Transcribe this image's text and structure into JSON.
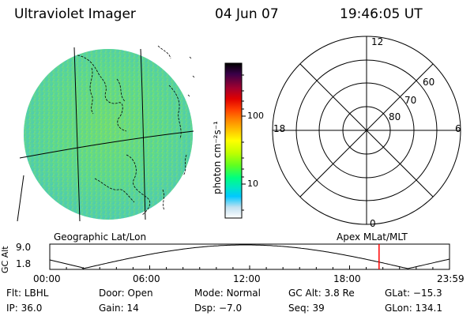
{
  "header": {
    "title": "Ultraviolet Imager",
    "date": "04 Jun 07",
    "time": "19:46:05 UT"
  },
  "colorbar": {
    "unit_label": "photon cm⁻²s⁻¹",
    "ticks": [
      "100",
      "10"
    ],
    "ticks_values": [
      100,
      10
    ],
    "colors": [
      "#000000",
      "#3a0048",
      "#a00030",
      "#e00000",
      "#ff4000",
      "#ff8000",
      "#ffc000",
      "#ffff00",
      "#c0ff00",
      "#60ff20",
      "#00ff80",
      "#00e8c0",
      "#00c8ff",
      "#c0e0f0",
      "#ffffff"
    ]
  },
  "polar": {
    "mlt_labels": {
      "top": "12",
      "left": "18",
      "right": "6",
      "bottom": "0"
    },
    "lat_labels": [
      "60",
      "70",
      "80"
    ],
    "lat_values": [
      60,
      70,
      80
    ]
  },
  "timeline": {
    "left_title": "Geographic Lat/Lon",
    "right_title": "Apex  MLat/MLT",
    "y_axis_label": "GC Alt",
    "y_ticks": [
      "9.0",
      "1.8"
    ],
    "x_ticks": [
      "00:00",
      "06:00",
      "12:00",
      "18:00",
      "23:59"
    ],
    "current_marker_hour": 19.77,
    "curve_color": "#000000",
    "marker_color": "#ff0000"
  },
  "footer": {
    "row1": [
      {
        "key": "Flt:",
        "value": "LBHL"
      },
      {
        "key": "Door:",
        "value": "Open"
      },
      {
        "key": "Mode:",
        "value": "Normal"
      },
      {
        "key": "GC Alt:",
        "value": "3.8 Re"
      },
      {
        "key": "GLat:",
        "value": "−15.3"
      }
    ],
    "row2": [
      {
        "key": "IP:",
        "value": "36.0"
      },
      {
        "key": "Gain:",
        "value": "14"
      },
      {
        "key": "Dsp:",
        "value": "−7.0"
      },
      {
        "key": "Seq:",
        "value": "39"
      },
      {
        "key": "GLon:",
        "value": "134.1"
      }
    ]
  }
}
